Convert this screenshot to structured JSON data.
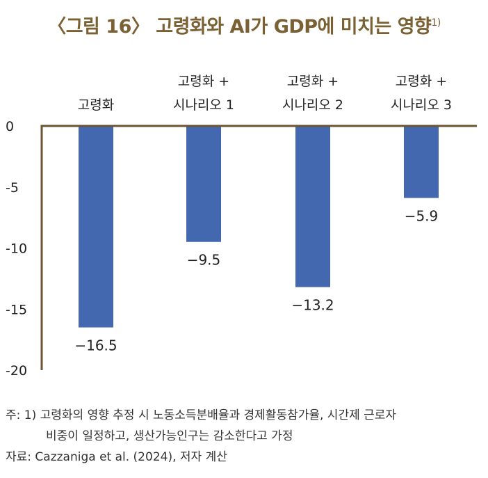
{
  "title": "〈그림 16〉 고령화와 AI가 GDP에 미치는 영향",
  "title_sup": "1)",
  "chart_data": {
    "type": "bar",
    "categories": [
      [
        "고령화"
      ],
      [
        "고령화 +",
        "시나리오 1"
      ],
      [
        "고령화 +",
        "시나리오 2"
      ],
      [
        "고령화 +",
        "시나리오 3"
      ]
    ],
    "values": [
      -16.5,
      -9.5,
      -13.2,
      -5.9
    ],
    "value_labels": [
      "−16.5",
      "−9.5",
      "−13.2",
      "−5.9"
    ],
    "ylim": [
      -20,
      0
    ],
    "yticks": [
      0,
      -5,
      -10,
      -15,
      -20
    ],
    "ytick_labels": [
      "0",
      "-5",
      "-10",
      "-15",
      "-20"
    ],
    "bar_color": "#4468b0",
    "axis_color": "#6b5533"
  },
  "notes": {
    "line1": "주: 1) 고령화의 영향 추정 시 노동소득분배율과 경제활동참가율, 시간제 근로자",
    "line2": "비중이 일정하고, 생산가능인구는 감소한다고 가정",
    "source": "자료: Cazzaniga et al. (2024), 저자 계산"
  }
}
